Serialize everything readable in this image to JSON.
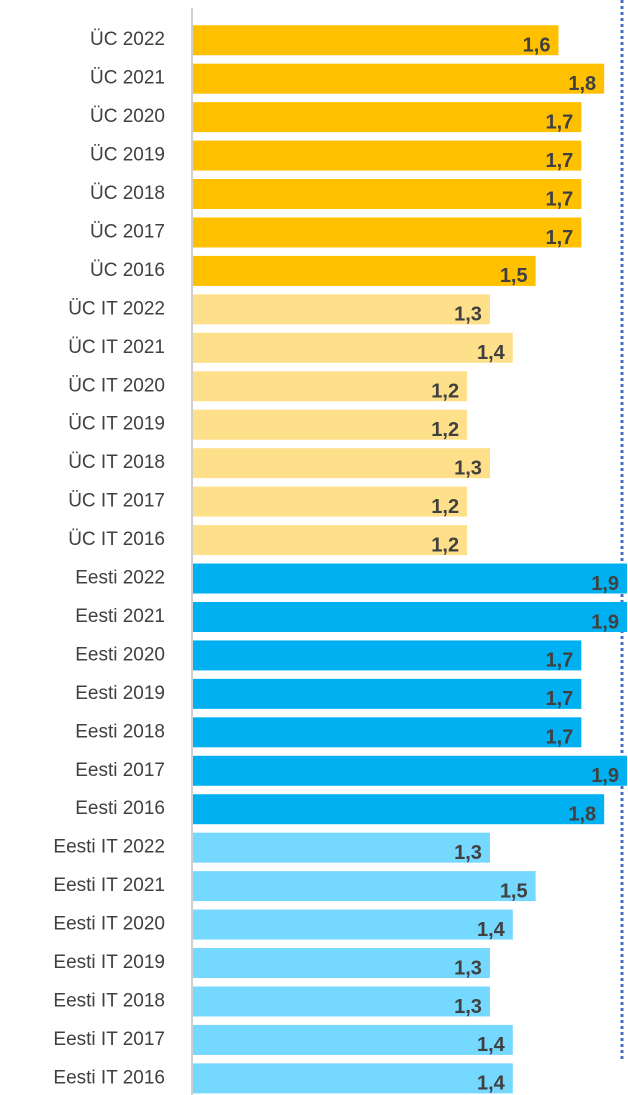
{
  "chart_data": {
    "type": "barh",
    "categories": [
      "ÜC 2022",
      "ÜC 2021",
      "ÜC 2020",
      "ÜC 2019",
      "ÜC 2018",
      "ÜC 2017",
      "ÜC 2016",
      "ÜC IT 2022",
      "ÜC IT 2021",
      "ÜC IT 2020",
      "ÜC IT 2019",
      "ÜC IT 2018",
      "ÜC IT 2017",
      "ÜC IT 2016",
      "Eesti 2022",
      "Eesti 2021",
      "Eesti 2020",
      "Eesti 2019",
      "Eesti 2018",
      "Eesti 2017",
      "Eesti 2016",
      "Eesti IT 2022",
      "Eesti IT 2021",
      "Eesti IT 2020",
      "Eesti IT 2019",
      "Eesti IT 2018",
      "Eesti IT 2017",
      "Eesti IT 2016"
    ],
    "values": [
      1.6,
      1.8,
      1.7,
      1.7,
      1.7,
      1.7,
      1.5,
      1.3,
      1.4,
      1.2,
      1.2,
      1.3,
      1.2,
      1.2,
      1.9,
      1.9,
      1.7,
      1.7,
      1.7,
      1.9,
      1.8,
      1.3,
      1.5,
      1.4,
      1.3,
      1.3,
      1.4,
      1.4
    ],
    "value_labels": [
      "1,6",
      "1,8",
      "1,7",
      "1,7",
      "1,7",
      "1,7",
      "1,5",
      "1,3",
      "1,4",
      "1,2",
      "1,2",
      "1,3",
      "1,2",
      "1,2",
      "1,9",
      "1,9",
      "1,7",
      "1,7",
      "1,7",
      "1,9",
      "1,8",
      "1,3",
      "1,5",
      "1,4",
      "1,3",
      "1,3",
      "1,4",
      "1,4"
    ],
    "colors": [
      "#FFC000",
      "#FFC000",
      "#FFC000",
      "#FFC000",
      "#FFC000",
      "#FFC000",
      "#FFC000",
      "#FFE08A",
      "#FFE08A",
      "#FFE08A",
      "#FFE08A",
      "#FFE08A",
      "#FFE08A",
      "#FFE08A",
      "#00B0F0",
      "#00B0F0",
      "#00B0F0",
      "#00B0F0",
      "#00B0F0",
      "#00B0F0",
      "#00B0F0",
      "#75D8FF",
      "#75D8FF",
      "#75D8FF",
      "#75D8FF",
      "#75D8FF",
      "#75D8FF",
      "#75D8FF"
    ],
    "xlim": [
      0,
      1.9
    ]
  }
}
